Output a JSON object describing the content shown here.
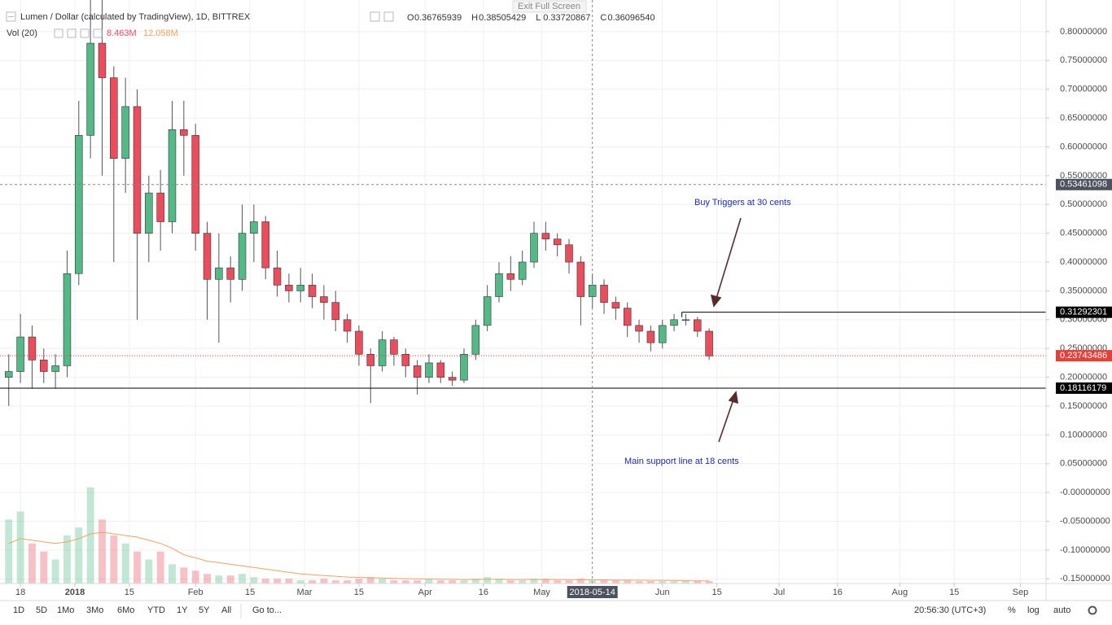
{
  "chart_data": {
    "type": "candlestick",
    "title": "Lumen / Dollar (calculated by TradingView), 1D, BITTREX",
    "ohlc": [
      {
        "label": "O",
        "value": "0.36765939"
      },
      {
        "label": "H",
        "value": "0.38505429"
      },
      {
        "label": "L",
        "value": "0.33720867"
      },
      {
        "label": "C",
        "value": "0.36096540"
      }
    ],
    "volume_title": "Vol (20)",
    "volume_readout": [
      "8.463M",
      "12.058M"
    ],
    "xlim": [
      -19.25,
      249.6
    ],
    "xticks": [
      {
        "value": -14,
        "label": "18"
      },
      {
        "value": 0,
        "label": "2018"
      },
      {
        "value": 14,
        "label": "15"
      },
      {
        "value": 31,
        "label": "Feb"
      },
      {
        "value": 45,
        "label": "15"
      },
      {
        "value": 59,
        "label": "Mar"
      },
      {
        "value": 73,
        "label": "15"
      },
      {
        "value": 90,
        "label": "Apr"
      },
      {
        "value": 105,
        "label": "16"
      },
      {
        "value": 120,
        "label": "May"
      },
      {
        "value": 151,
        "label": "Jun"
      },
      {
        "value": 165,
        "label": "15"
      },
      {
        "value": 181,
        "label": "Jul"
      },
      {
        "value": 196,
        "label": "16"
      },
      {
        "value": 212,
        "label": "Aug"
      },
      {
        "value": 226,
        "label": "15"
      },
      {
        "value": 243,
        "label": "Sep"
      }
    ],
    "ylim": [
      -0.158,
      0.855
    ],
    "yticks": [
      {
        "value": 0.8,
        "label": "0.80000000"
      },
      {
        "value": 0.75,
        "label": "0.75000000"
      },
      {
        "value": 0.7,
        "label": "0.70000000"
      },
      {
        "value": 0.65,
        "label": "0.65000000"
      },
      {
        "value": 0.6,
        "label": "0.60000000"
      },
      {
        "value": 0.55,
        "label": "0.55000000"
      },
      {
        "value": 0.5,
        "label": "0.50000000"
      },
      {
        "value": 0.45,
        "label": "0.45000000"
      },
      {
        "value": 0.4,
        "label": "0.40000000"
      },
      {
        "value": 0.35,
        "label": "0.35000000"
      },
      {
        "value": 0.3,
        "label": "0.30000000"
      },
      {
        "value": 0.25,
        "label": "0.25000000"
      },
      {
        "value": 0.2,
        "label": "0.20000000"
      },
      {
        "value": 0.15,
        "label": "0.15000000"
      },
      {
        "value": 0.1,
        "label": "0.10000000"
      },
      {
        "value": 0.05,
        "label": "0.05000000"
      },
      {
        "value": 0,
        "label": "-0.00000000"
      },
      {
        "value": -0.05,
        "label": "-0.05000000"
      },
      {
        "value": -0.1,
        "label": "-0.10000000"
      },
      {
        "value": -0.15,
        "label": "-0.15000000"
      }
    ],
    "grid": true,
    "up_color": "#53b987",
    "down_color": "#eb4d5c",
    "candles": {
      "x": [
        -17,
        -14,
        -11,
        -8,
        -5,
        -2,
        1,
        4,
        7,
        10,
        13,
        16,
        19,
        22,
        25,
        28,
        31,
        34,
        37,
        40,
        43,
        46,
        49,
        52,
        55,
        58,
        61,
        64,
        67,
        70,
        73,
        76,
        79,
        82,
        85,
        88,
        91,
        94,
        97,
        100,
        103,
        106,
        109,
        112,
        115,
        118,
        121,
        124,
        127,
        130,
        133,
        136,
        139,
        142,
        145,
        148,
        151,
        154,
        157,
        160,
        163
      ],
      "open": [
        0.2,
        0.21,
        0.27,
        0.23,
        0.21,
        0.22,
        0.38,
        0.62,
        0.78,
        0.72,
        0.58,
        0.67,
        0.45,
        0.52,
        0.47,
        0.63,
        0.62,
        0.45,
        0.37,
        0.39,
        0.37,
        0.45,
        0.47,
        0.39,
        0.36,
        0.35,
        0.36,
        0.34,
        0.33,
        0.3,
        0.28,
        0.24,
        0.22,
        0.265,
        0.24,
        0.22,
        0.2,
        0.225,
        0.2,
        0.195,
        0.24,
        0.29,
        0.34,
        0.38,
        0.37,
        0.4,
        0.45,
        0.44,
        0.43,
        0.4,
        0.34,
        0.36,
        0.33,
        0.32,
        0.29,
        0.28,
        0.26,
        0.29,
        0.3,
        0.3,
        0.28
      ],
      "high": [
        0.24,
        0.31,
        0.29,
        0.25,
        0.24,
        0.42,
        0.68,
        0.88,
        0.86,
        0.74,
        0.72,
        0.7,
        0.55,
        0.56,
        0.68,
        0.68,
        0.64,
        0.47,
        0.45,
        0.41,
        0.5,
        0.5,
        0.48,
        0.42,
        0.38,
        0.39,
        0.38,
        0.36,
        0.35,
        0.31,
        0.29,
        0.25,
        0.28,
        0.27,
        0.25,
        0.23,
        0.24,
        0.23,
        0.21,
        0.25,
        0.3,
        0.36,
        0.4,
        0.41,
        0.42,
        0.47,
        0.47,
        0.45,
        0.44,
        0.41,
        0.38,
        0.37,
        0.34,
        0.33,
        0.3,
        0.29,
        0.3,
        0.31,
        0.31,
        0.305,
        0.285
      ],
      "low": [
        0.15,
        0.19,
        0.18,
        0.19,
        0.18,
        0.2,
        0.36,
        0.58,
        0.55,
        0.4,
        0.52,
        0.3,
        0.4,
        0.42,
        0.45,
        0.55,
        0.42,
        0.3,
        0.26,
        0.33,
        0.35,
        0.4,
        0.37,
        0.34,
        0.33,
        0.33,
        0.32,
        0.3,
        0.28,
        0.26,
        0.22,
        0.155,
        0.21,
        0.22,
        0.2,
        0.17,
        0.19,
        0.19,
        0.185,
        0.19,
        0.23,
        0.28,
        0.33,
        0.35,
        0.36,
        0.39,
        0.42,
        0.41,
        0.38,
        0.29,
        0.32,
        0.31,
        0.3,
        0.27,
        0.26,
        0.245,
        0.25,
        0.28,
        0.29,
        0.27,
        0.23
      ],
      "close": [
        0.21,
        0.27,
        0.23,
        0.21,
        0.22,
        0.38,
        0.62,
        0.78,
        0.72,
        0.58,
        0.67,
        0.45,
        0.52,
        0.47,
        0.63,
        0.62,
        0.45,
        0.37,
        0.39,
        0.37,
        0.45,
        0.47,
        0.39,
        0.36,
        0.35,
        0.36,
        0.34,
        0.33,
        0.3,
        0.28,
        0.24,
        0.22,
        0.265,
        0.24,
        0.22,
        0.2,
        0.225,
        0.2,
        0.195,
        0.24,
        0.29,
        0.34,
        0.38,
        0.37,
        0.4,
        0.45,
        0.44,
        0.43,
        0.4,
        0.34,
        0.36,
        0.33,
        0.32,
        0.29,
        0.28,
        0.26,
        0.29,
        0.3,
        0.3,
        0.28,
        0.237
      ]
    },
    "volume_ylim": [
      0,
      90
    ],
    "volume": [
      40,
      45,
      25,
      20,
      15,
      30,
      35,
      60,
      40,
      30,
      25,
      20,
      15,
      20,
      12,
      10,
      8,
      6,
      5,
      5,
      6,
      4,
      3,
      3,
      3,
      2,
      2,
      3,
      2,
      2,
      3,
      4,
      3,
      2,
      2,
      2,
      3,
      2,
      2,
      2,
      3,
      4,
      3,
      2,
      2,
      3,
      3,
      2,
      2,
      3,
      2,
      2,
      2,
      2,
      1.5,
      1.5,
      1.5,
      1.5,
      1.5,
      1.5,
      1.5
    ],
    "volume_ma": [
      25,
      28,
      27,
      26,
      25,
      26,
      28,
      31,
      32,
      31,
      30,
      29,
      27,
      25,
      22,
      18,
      16,
      14,
      13,
      12,
      11,
      10,
      9,
      8,
      7,
      6,
      5.5,
      5,
      4.5,
      4,
      3.8,
      3.6,
      3.4,
      3.2,
      3,
      2.9,
      2.8,
      2.7,
      2.6,
      2.5,
      2.5,
      2.6,
      2.6,
      2.5,
      2.5,
      2.5,
      2.5,
      2.5,
      2.4,
      2.4,
      2.3,
      2.3,
      2.2,
      2.2,
      2.1,
      2,
      2,
      1.9,
      1.8,
      1.7,
      1.6
    ],
    "volume_ma_color": "#f0a35c",
    "levels": [
      {
        "value": 0.31292301,
        "color": "#000000",
        "from": 156
      },
      {
        "value": 0.18116179,
        "color": "#000000"
      },
      {
        "value": 0.23743486,
        "color": "#e0423a",
        "dotted": true
      }
    ],
    "crosshair": {
      "x": 133,
      "x_label": "2018-05-14",
      "y": 0.53461098
    },
    "annotations": [
      "Buy Triggers at 30 cents",
      "Main support line at 18 cents"
    ]
  },
  "ui": {
    "exit_full_screen": "Exit Full Screen",
    "ranges": [
      "1D",
      "5D",
      "1Mo",
      "3Mo",
      "6Mo",
      "YTD",
      "1Y",
      "5Y",
      "All"
    ],
    "goto": "Go to...",
    "clock": "20:56:30 (UTC+3)",
    "toggles": [
      "%",
      "log",
      "auto"
    ]
  }
}
